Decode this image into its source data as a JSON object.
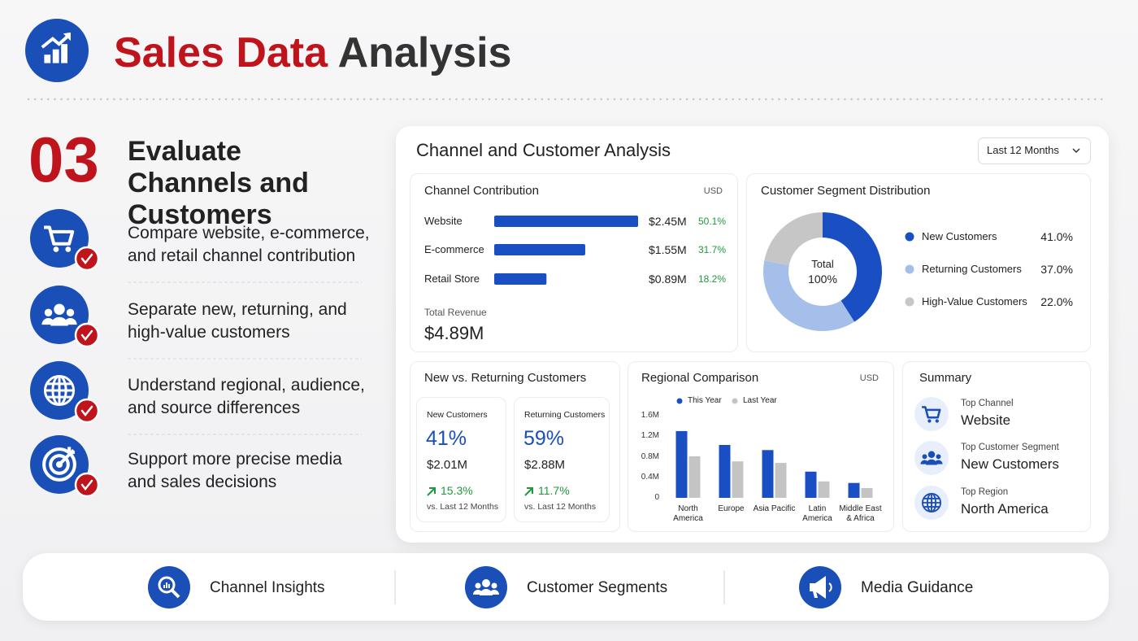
{
  "header": {
    "title_red": "Sales Data",
    "title_dark": "Analysis"
  },
  "step": {
    "number": "03",
    "title": "Evaluate Channels and Customers",
    "items": [
      "Compare website, e-commerce, and retail channel contribution",
      "Separate new, returning, and high-value customers",
      "Understand regional, audience, and source differences",
      "Support more precise media and sales decisions"
    ]
  },
  "dashboard": {
    "title": "Channel and Customer Analysis",
    "filter": "Last 12 Months",
    "channel": {
      "type": "hbar",
      "title": "Channel Contribution",
      "unit": "USD",
      "color": "#1a4fc4",
      "categories": [
        "Website",
        "E-commerce",
        "Retail Store"
      ],
      "values": [
        2.45,
        1.55,
        0.89
      ],
      "value_labels": [
        "$2.45M",
        "$1.55M",
        "$0.89M"
      ],
      "shares": [
        50.1,
        31.7,
        18.2
      ],
      "share_labels": [
        "50.1%",
        "31.7%",
        "18.2%"
      ],
      "total_label": "Total Revenue",
      "total": "$4.89M"
    },
    "segments": {
      "type": "pie",
      "title": "Customer Segment Distribution",
      "center_label": "Total",
      "center_value": "100%",
      "categories": [
        "New Customers",
        "Returning Customers",
        "High-Value Customers"
      ],
      "values": [
        41,
        37,
        22
      ],
      "value_labels": [
        "41.0%",
        "37.0%",
        "22.0%"
      ],
      "colors": [
        "#1a4fc4",
        "#a6bfea",
        "#c6c6c6"
      ]
    },
    "new_returning": {
      "title": "New vs. Returning Customers",
      "cards": [
        {
          "label": "New Customers",
          "share": "41%",
          "amount": "$2.01M",
          "change": "15.3%",
          "note": "vs. Last 12 Months"
        },
        {
          "label": "Returning Customers",
          "share": "59%",
          "amount": "$2.88M",
          "change": "11.7%",
          "note": "vs. Last 12 Months"
        }
      ]
    },
    "regional": {
      "type": "bar",
      "title": "Regional Comparison",
      "unit": "USD",
      "categories": [
        "North America",
        "Europe",
        "Asia Pacific",
        "Latin America",
        "Middle East & Africa"
      ],
      "series": [
        {
          "name": "This Year",
          "color": "#1a4fc4",
          "values": [
            1.3,
            1.03,
            0.93,
            0.51,
            0.29
          ]
        },
        {
          "name": "Last Year",
          "color": "#c4c4c4",
          "values": [
            0.81,
            0.71,
            0.68,
            0.32,
            0.19
          ]
        }
      ],
      "ylim": [
        0,
        1.6
      ],
      "yticks": [
        0,
        {
          "value": 0.4,
          "label": "0.4M"
        },
        {
          "value": 0.8,
          "label": "0.8M"
        },
        {
          "value": 1.2,
          "label": "1.2M"
        },
        {
          "value": 1.6,
          "label": "1.6M"
        }
      ]
    },
    "summary": {
      "title": "Summary",
      "items": [
        {
          "label": "Top Channel",
          "value": "Website"
        },
        {
          "label": "Top Customer Segment",
          "value": "New Customers"
        },
        {
          "label": "Top Region",
          "value": "North America"
        }
      ]
    }
  },
  "footer": {
    "items": [
      "Channel Insights",
      "Customer Segments",
      "Media Guidance"
    ]
  }
}
